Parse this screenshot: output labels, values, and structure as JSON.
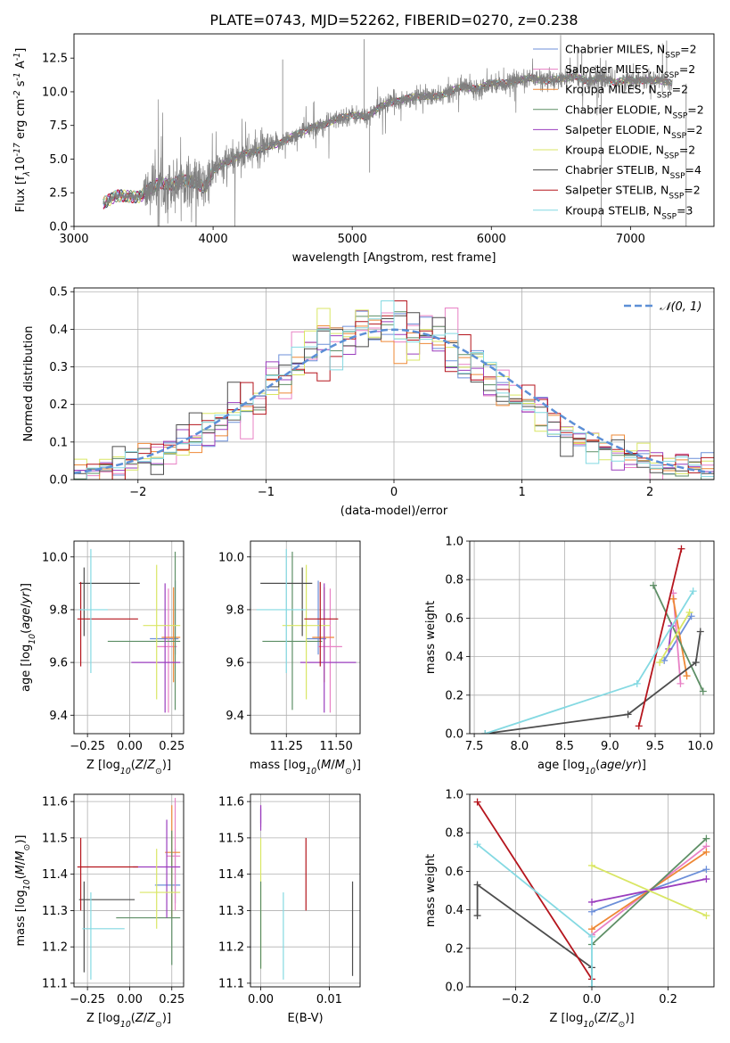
{
  "figure_title": "PLATE=0743, MJD=52262, FIBERID=0270, z=0.238",
  "models": [
    {
      "name": "Chabrier MILES, N$_{SSP}$=2",
      "label": "Chabrier MILES, N",
      "sub": "SSP",
      "n": "=2",
      "color": "#6C8FD9"
    },
    {
      "name": "Salpeter MILES, N$_{SSP}$=2",
      "label": "Salpeter MILES, N",
      "sub": "SSP",
      "n": "=2",
      "color": "#E881C5"
    },
    {
      "name": "Kroupa MILES, N$_{SSP}$=2",
      "label": "Kroupa MILES, N",
      "sub": "SSP",
      "n": "=2",
      "color": "#EE8836"
    },
    {
      "name": "Chabrier ELODIE, N$_{SSP}$=2",
      "label": "Chabrier ELODIE, N",
      "sub": "SSP",
      "n": "=2",
      "color": "#5E8F66"
    },
    {
      "name": "Salpeter ELODIE, N$_{SSP}$=2",
      "label": "Salpeter ELODIE, N",
      "sub": "SSP",
      "n": "=2",
      "color": "#9A3DBE"
    },
    {
      "name": "Kroupa ELODIE, N$_{SSP}$=2",
      "label": "Kroupa ELODIE, N",
      "sub": "SSP",
      "n": "=2",
      "color": "#D9E664"
    },
    {
      "name": "Chabrier STELIB, N$_{SSP}$=4",
      "label": "Chabrier STELIB, N",
      "sub": "SSP",
      "n": "=4",
      "color": "#4D4D4D"
    },
    {
      "name": "Salpeter STELIB, N$_{SSP}$=2",
      "label": "Salpeter STELIB, N",
      "sub": "SSP",
      "n": "=2",
      "color": "#B5151D"
    },
    {
      "name": "Kroupa STELIB, N$_{SSP}$=3",
      "label": "Kroupa STELIB, N",
      "sub": "SSP",
      "n": "=3",
      "color": "#84D9E2"
    }
  ],
  "chart_data": [
    {
      "id": "spectrum",
      "type": "line",
      "xlabel": "wavelength [Angstrom, rest frame]",
      "ylabel": "Flux [f$_\\lambda$10$^{-17}$ erg cm$^{-2}$ s$^{-1}$ A$^{-1}$]",
      "xlim": [
        3000,
        7600
      ],
      "ylim": [
        0,
        14.3
      ],
      "xticks": [
        3000,
        4000,
        5000,
        6000,
        7000
      ],
      "yticks": [
        0.0,
        2.5,
        5.0,
        7.5,
        10.0,
        12.5
      ],
      "data_color": "#808080",
      "continuum_knots": {
        "x": [
          3210,
          3300,
          3380,
          3480,
          3550,
          3620,
          3700,
          3780,
          3850,
          3940,
          4000,
          4100,
          4200,
          4300,
          4400,
          4500,
          4650,
          4800,
          4900,
          5000,
          5100,
          5200,
          5300,
          5400,
          5500,
          5600,
          5700,
          5800,
          5900,
          6000,
          6100,
          6200,
          6300,
          6400,
          6500,
          6600,
          6700,
          6800,
          6900,
          7000,
          7100,
          7200,
          7300
        ],
        "y": [
          1.7,
          2.3,
          2.2,
          2.25,
          2.8,
          3.3,
          3.0,
          3.5,
          3.3,
          2.9,
          4.1,
          4.8,
          5.3,
          5.6,
          5.9,
          6.3,
          7.1,
          7.6,
          8.0,
          8.3,
          8.1,
          8.9,
          9.3,
          9.5,
          9.7,
          9.6,
          10.0,
          10.4,
          10.2,
          10.7,
          10.6,
          10.9,
          11.0,
          10.8,
          11.0,
          11.1,
          10.8,
          11.0,
          10.7,
          10.9,
          10.8,
          10.9,
          10.6
        ]
      },
      "noise_ranges": [
        {
          "x": [
            3210,
            3500
          ],
          "sigma": 0.15
        },
        {
          "x": [
            3500,
            4000
          ],
          "sigma": 0.9
        },
        {
          "x": [
            4000,
            4400
          ],
          "sigma": 0.6
        },
        {
          "x": [
            4400,
            7300
          ],
          "sigma": 0.35
        }
      ],
      "spikes": [
        {
          "x": 4500,
          "y": 12.4
        },
        {
          "x": 5085,
          "y": 13.9
        },
        {
          "x": 5125,
          "y": 4.0
        },
        {
          "x": 6620,
          "y": 13.2
        },
        {
          "x": 6650,
          "y": 13.0
        },
        {
          "x": 6790,
          "y": 0.0
        },
        {
          "x": 7230,
          "y": 13.6
        },
        {
          "x": 7260,
          "y": 13.8
        },
        {
          "x": 7400,
          "y": 0.0
        }
      ]
    },
    {
      "id": "residuals",
      "type": "histogram",
      "xlabel": "(data-model)/error",
      "ylabel": "Normed distribution",
      "xlim": [
        -2.5,
        2.5
      ],
      "ylim": [
        0,
        0.51
      ],
      "xticks": [
        -2,
        -1,
        0,
        1,
        2
      ],
      "yticks": [
        0.0,
        0.1,
        0.2,
        0.3,
        0.4,
        0.5
      ],
      "legend": "$\\mathcal{N}(0,1)$",
      "legend_text": "𝒩(0, 1)",
      "gaussian_color": "#5C8FD6",
      "bin_edges": [
        -2.5,
        -2.4,
        -2.3,
        -2.2,
        -2.1,
        -2.0,
        -1.9,
        -1.8,
        -1.7,
        -1.6,
        -1.5,
        -1.4,
        -1.3,
        -1.2,
        -1.1,
        -1.0,
        -0.9,
        -0.8,
        -0.7,
        -0.6,
        -0.5,
        -0.4,
        -0.3,
        -0.2,
        -0.1,
        0.0,
        0.1,
        0.2,
        0.3,
        0.4,
        0.5,
        0.6,
        0.7,
        0.8,
        0.9,
        1.0,
        1.1,
        1.2,
        1.3,
        1.4,
        1.5,
        1.6,
        1.7,
        1.8,
        1.9,
        2.0,
        2.1,
        2.2,
        2.3,
        2.4,
        2.5
      ],
      "base_counts": [
        0.02,
        0.025,
        0.03,
        0.04,
        0.05,
        0.06,
        0.07,
        0.08,
        0.1,
        0.11,
        0.13,
        0.14,
        0.16,
        0.18,
        0.21,
        0.24,
        0.28,
        0.31,
        0.34,
        0.36,
        0.37,
        0.37,
        0.38,
        0.39,
        0.4,
        0.4,
        0.39,
        0.38,
        0.37,
        0.35,
        0.33,
        0.3,
        0.28,
        0.25,
        0.23,
        0.2,
        0.18,
        0.15,
        0.13,
        0.11,
        0.1,
        0.08,
        0.07,
        0.06,
        0.05,
        0.045,
        0.04,
        0.035,
        0.03,
        0.025
      ],
      "jitter": 0.035
    },
    {
      "id": "z_age",
      "type": "errorbar",
      "xlabel": "Z [log$_{10}$($Z/Z_\\odot$)]",
      "ylabel": "age  [log$_{10}$($age/yr$)]",
      "xlim": [
        -0.33,
        0.32
      ],
      "ylim": [
        9.33,
        10.06
      ],
      "xticks": [
        -0.25,
        0.0,
        0.25
      ],
      "yticks": [
        9.4,
        9.6,
        9.8,
        10.0
      ],
      "points": [
        {
          "x": 0.27,
          "y": 9.69,
          "xerr": [
            0.15,
            0.02
          ],
          "yerr": [
            0.06,
            0.22
          ]
        },
        {
          "x": 0.23,
          "y": 9.66,
          "xerr": [
            0.07,
            0.05
          ],
          "yerr": [
            0.25,
            0.22
          ]
        },
        {
          "x": 0.26,
          "y": 9.695,
          "xerr": [
            0.07,
            0.04
          ],
          "yerr": [
            0.17,
            0.19
          ]
        },
        {
          "x": 0.27,
          "y": 9.68,
          "xerr": [
            0.4,
            0.03
          ],
          "yerr": [
            0.26,
            0.34
          ]
        },
        {
          "x": 0.21,
          "y": 9.6,
          "xerr": [
            0.2,
            0.09
          ],
          "yerr": [
            0.19,
            0.3
          ]
        },
        {
          "x": 0.16,
          "y": 9.74,
          "xerr": [
            0.08,
            0.14
          ],
          "yerr": [
            0.28,
            0.23
          ]
        },
        {
          "x": -0.27,
          "y": 9.9,
          "xerr": [
            0.03,
            0.33
          ],
          "yerr": [
            0.2,
            0.06
          ]
        },
        {
          "x": -0.29,
          "y": 9.765,
          "xerr": [
            0.02,
            0.34
          ],
          "yerr": [
            0.18,
            0.14
          ]
        },
        {
          "x": -0.23,
          "y": 9.8,
          "xerr": [
            0.07,
            0.1
          ],
          "yerr": [
            0.24,
            0.23
          ]
        }
      ]
    },
    {
      "id": "mass_age",
      "type": "errorbar",
      "xlabel": "mass [log$_{10}$($M/M_\\odot$)]",
      "ylabel": "",
      "xlim": [
        11.07,
        11.62
      ],
      "ylim": [
        9.33,
        10.06
      ],
      "xticks": [
        11.25,
        11.5
      ],
      "yticks": [
        9.4,
        9.6,
        9.8,
        10.0
      ],
      "points": [
        {
          "x": 11.41,
          "y": 9.69,
          "xerr": [
            0.06,
            0.04
          ],
          "yerr": [
            0.06,
            0.22
          ]
        },
        {
          "x": 11.47,
          "y": 9.66,
          "xerr": [
            0.06,
            0.06
          ],
          "yerr": [
            0.25,
            0.22
          ]
        },
        {
          "x": 11.44,
          "y": 9.695,
          "xerr": [
            0.06,
            0.05
          ],
          "yerr": [
            0.17,
            0.19
          ]
        },
        {
          "x": 11.28,
          "y": 9.68,
          "xerr": [
            0.15,
            0.15
          ],
          "yerr": [
            0.26,
            0.34
          ]
        },
        {
          "x": 11.44,
          "y": 9.6,
          "xerr": [
            0.12,
            0.16
          ],
          "yerr": [
            0.19,
            0.3
          ]
        },
        {
          "x": 11.35,
          "y": 9.74,
          "xerr": [
            0.12,
            0.12
          ],
          "yerr": [
            0.28,
            0.23
          ]
        },
        {
          "x": 11.33,
          "y": 9.9,
          "xerr": [
            0.21,
            0.05
          ],
          "yerr": [
            0.2,
            0.06
          ]
        },
        {
          "x": 11.42,
          "y": 9.765,
          "xerr": [
            0.08,
            0.09
          ],
          "yerr": [
            0.18,
            0.14
          ]
        },
        {
          "x": 11.25,
          "y": 9.8,
          "xerr": [
            0.15,
            0.1
          ],
          "yerr": [
            0.24,
            0.23
          ]
        }
      ]
    },
    {
      "id": "age_weight",
      "type": "line",
      "xlabel": "age  [log$_{10}$($age/yr$)]",
      "ylabel": "mass weight",
      "xlim": [
        7.45,
        10.15
      ],
      "ylim": [
        0,
        1.0
      ],
      "xticks": [
        7.5,
        8.0,
        8.5,
        9.0,
        9.5,
        10.0
      ],
      "yticks": [
        0.0,
        0.2,
        0.4,
        0.6,
        0.8,
        1.0
      ],
      "series": [
        {
          "model": 0,
          "x": [
            9.6,
            9.9
          ],
          "y": [
            0.38,
            0.61
          ]
        },
        {
          "model": 1,
          "x": [
            9.78,
            9.7
          ],
          "y": [
            0.26,
            0.73
          ]
        },
        {
          "model": 2,
          "x": [
            9.85,
            9.7
          ],
          "y": [
            0.3,
            0.7
          ]
        },
        {
          "model": 3,
          "x": [
            9.48,
            10.03
          ],
          "y": [
            0.77,
            0.22
          ]
        },
        {
          "model": 4,
          "x": [
            9.65,
            9.68
          ],
          "y": [
            0.44,
            0.56
          ]
        },
        {
          "model": 5,
          "x": [
            9.55,
            9.88
          ],
          "y": [
            0.37,
            0.63
          ]
        },
        {
          "model": 6,
          "x": [
            7.62,
            9.2,
            9.95,
            10.0
          ],
          "y": [
            0.0,
            0.1,
            0.37,
            0.53
          ]
        },
        {
          "model": 7,
          "x": [
            9.32,
            9.79
          ],
          "y": [
            0.04,
            0.96
          ]
        },
        {
          "model": 8,
          "x": [
            7.62,
            9.3,
            9.92
          ],
          "y": [
            0.0,
            0.26,
            0.74
          ]
        }
      ]
    },
    {
      "id": "z_mass",
      "type": "errorbar",
      "xlabel": "Z [log$_{10}$($Z/Z_\\odot$)]",
      "ylabel": "mass [log$_{10}$($M/M_\\odot$)]",
      "xlim": [
        -0.33,
        0.32
      ],
      "ylim": [
        11.09,
        11.62
      ],
      "xticks": [
        -0.25,
        0.0,
        0.25
      ],
      "yticks": [
        11.1,
        11.2,
        11.3,
        11.4,
        11.5,
        11.6
      ],
      "points": [
        {
          "x": 0.27,
          "y": 11.37,
          "xerr": [
            0.12,
            0.03
          ],
          "yerr": [
            0.05,
            0.1
          ]
        },
        {
          "x": 0.27,
          "y": 11.45,
          "xerr": [
            0.05,
            0.03
          ],
          "yerr": [
            0.15,
            0.16
          ]
        },
        {
          "x": 0.25,
          "y": 11.46,
          "xerr": [
            0.04,
            0.05
          ],
          "yerr": [
            0.18,
            0.13
          ]
        },
        {
          "x": 0.25,
          "y": 11.28,
          "xerr": [
            0.33,
            0.05
          ],
          "yerr": [
            0.13,
            0.24
          ]
        },
        {
          "x": 0.22,
          "y": 11.42,
          "xerr": [
            0.2,
            0.08
          ],
          "yerr": [
            0.14,
            0.13
          ]
        },
        {
          "x": 0.16,
          "y": 11.35,
          "xerr": [
            0.1,
            0.14
          ],
          "yerr": [
            0.1,
            0.12
          ]
        },
        {
          "x": -0.27,
          "y": 11.33,
          "xerr": [
            0.03,
            0.3
          ],
          "yerr": [
            0.2,
            0.05
          ]
        },
        {
          "x": -0.29,
          "y": 11.42,
          "xerr": [
            0.02,
            0.34
          ],
          "yerr": [
            0.12,
            0.08
          ]
        },
        {
          "x": -0.23,
          "y": 11.25,
          "xerr": [
            0.05,
            0.2
          ],
          "yerr": [
            0.14,
            0.1
          ]
        }
      ]
    },
    {
      "id": "ebv_mass",
      "type": "errorbar",
      "xlabel": "E(B-V)",
      "ylabel": "",
      "xlim": [
        -0.0015,
        0.0145
      ],
      "ylim": [
        11.09,
        11.62
      ],
      "xticks": [
        0.0,
        0.01
      ],
      "yticks": [
        11.1,
        11.2,
        11.3,
        11.4,
        11.5,
        11.6
      ],
      "points": [
        {
          "model": 0,
          "x": 0.0,
          "y": 11.56,
          "yerr": [
            0.02,
            0.02
          ]
        },
        {
          "model": 1,
          "x": 0.0,
          "y": 11.56,
          "yerr": [
            0.03,
            0.03
          ]
        },
        {
          "model": 4,
          "x": 0.0,
          "y": 11.55,
          "yerr": [
            0.03,
            0.04
          ]
        },
        {
          "model": 5,
          "x": 0.0,
          "y": 11.33,
          "yerr": [
            0.19,
            0.17
          ]
        },
        {
          "model": 3,
          "x": 0.0,
          "y": 11.3,
          "yerr": [
            0.16,
            0.08
          ]
        },
        {
          "model": 8,
          "x": 0.0033,
          "y": 11.23,
          "yerr": [
            0.12,
            0.12
          ]
        },
        {
          "model": 7,
          "x": 0.0066,
          "y": 11.4,
          "yerr": [
            0.1,
            0.1
          ]
        },
        {
          "model": 6,
          "x": 0.0134,
          "y": 11.25,
          "yerr": [
            0.13,
            0.13
          ]
        }
      ]
    },
    {
      "id": "z_weight",
      "type": "line",
      "xlabel": "Z [log$_{10}$($Z/Z_\\odot$)]",
      "ylabel": "mass weight",
      "xlim": [
        -0.32,
        0.32
      ],
      "ylim": [
        0,
        1.0
      ],
      "xticks": [
        -0.2,
        0.0,
        0.2
      ],
      "yticks": [
        0.0,
        0.2,
        0.4,
        0.6,
        0.8,
        1.0
      ],
      "series": [
        {
          "model": 0,
          "x": [
            0.0,
            0.3
          ],
          "y": [
            0.39,
            0.61
          ]
        },
        {
          "model": 1,
          "x": [
            0.0,
            0.3
          ],
          "y": [
            0.27,
            0.73
          ]
        },
        {
          "model": 2,
          "x": [
            0.0,
            0.3
          ],
          "y": [
            0.3,
            0.7
          ]
        },
        {
          "model": 3,
          "x": [
            0.0,
            0.3
          ],
          "y": [
            0.22,
            0.77
          ]
        },
        {
          "model": 4,
          "x": [
            0.0,
            0.3
          ],
          "y": [
            0.44,
            0.56
          ]
        },
        {
          "model": 5,
          "x": [
            0.0,
            0.3
          ],
          "y": [
            0.63,
            0.37
          ]
        },
        {
          "model": 6,
          "x": [
            -0.3,
            -0.3,
            0.0,
            0.0
          ],
          "y": [
            0.37,
            0.53,
            0.1,
            0.0
          ]
        },
        {
          "model": 7,
          "x": [
            -0.3,
            0.0
          ],
          "y": [
            0.96,
            0.04
          ]
        },
        {
          "model": 8,
          "x": [
            -0.3,
            0.0,
            0.0
          ],
          "y": [
            0.74,
            0.26,
            0.0
          ]
        }
      ]
    }
  ]
}
